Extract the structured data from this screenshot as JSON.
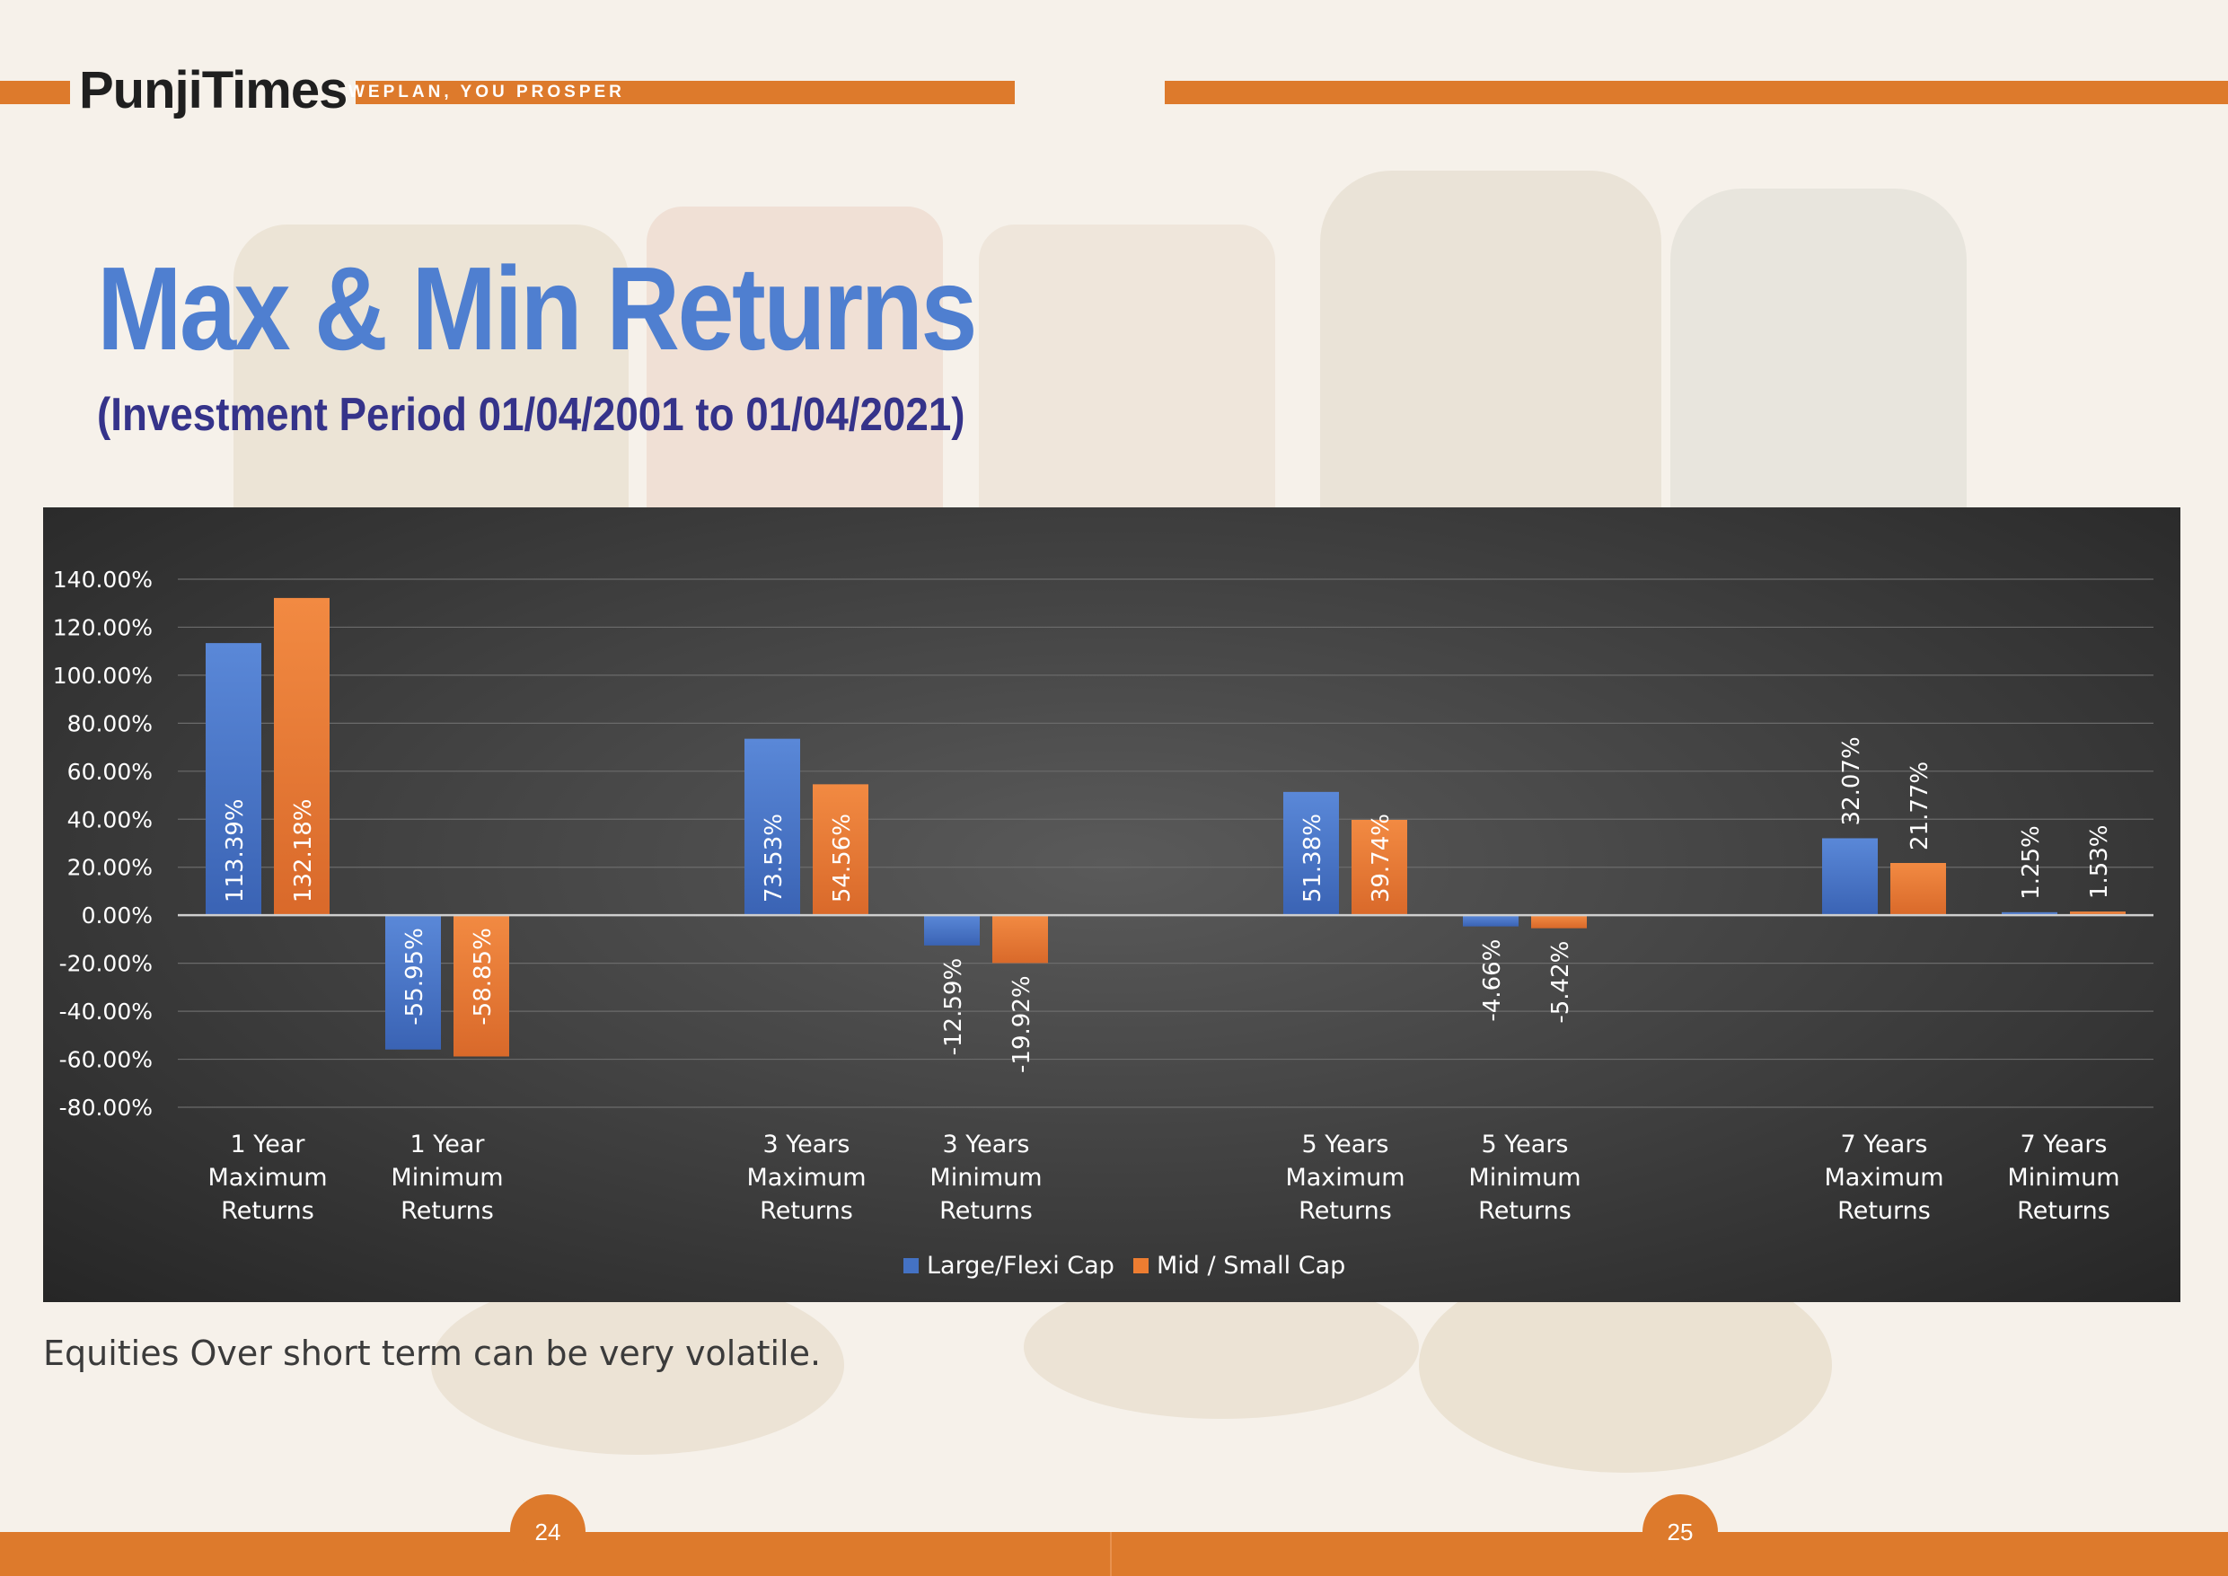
{
  "brand": {
    "name": "PunjiTimes",
    "tagline": "WEPLAN, YOU PROSPER",
    "accent_color": "#dd7a2c"
  },
  "page": {
    "title": "Max & Min Returns",
    "subtitle": "(Investment Period 01/04/2001 to 01/04/2021)",
    "caption": "Equities Over short term can be very volatile.",
    "page_left": "24",
    "page_right": "25"
  },
  "chart_data": {
    "type": "bar",
    "title": "",
    "xlabel": "",
    "ylabel": "",
    "ylim": [
      -80,
      140
    ],
    "yticks": [
      "140.00%",
      "120.00%",
      "100.00%",
      "80.00%",
      "60.00%",
      "40.00%",
      "20.00%",
      "0.00%",
      "-20.00%",
      "-40.00%",
      "-60.00%",
      "-80.00%"
    ],
    "ytick_values": [
      140,
      120,
      100,
      80,
      60,
      40,
      20,
      0,
      -20,
      -40,
      -60,
      -80
    ],
    "grid": true,
    "legend_position": "bottom",
    "categories": [
      [
        "1 Year",
        "Maximum",
        "Returns"
      ],
      [
        "1 Year",
        "Minimum",
        "Returns"
      ],
      [
        "3 Years",
        "Maximum",
        "Returns"
      ],
      [
        "3 Years",
        "Minimum",
        "Returns"
      ],
      [
        "5 Years",
        "Maximum",
        "Returns"
      ],
      [
        "5 Years",
        "Minimum",
        "Returns"
      ],
      [
        "7 Years",
        "Maximum",
        "Returns"
      ],
      [
        "7 Years",
        "Minimum",
        "Returns"
      ]
    ],
    "category_slots": [
      0,
      1,
      3,
      4,
      6,
      7,
      9,
      10
    ],
    "series": [
      {
        "name": "Large/Flexi Cap",
        "color": "#4472c4",
        "values": [
          113.39,
          -55.95,
          73.53,
          -12.59,
          51.38,
          -4.66,
          32.07,
          1.25
        ],
        "labels": [
          "113.39%",
          "-55.95%",
          "73.53%",
          "-12.59%",
          "51.38%",
          "-4.66%",
          "32.07%",
          "1.25%"
        ]
      },
      {
        "name": "Mid / Small Cap",
        "color": "#ed7d31",
        "values": [
          132.18,
          -58.85,
          54.56,
          -19.92,
          39.74,
          -5.42,
          21.77,
          1.53
        ],
        "labels": [
          "132.18%",
          "-58.85%",
          "54.56%",
          "-19.92%",
          "39.74%",
          "-5.42%",
          "21.77%",
          "1.53%"
        ]
      }
    ]
  }
}
